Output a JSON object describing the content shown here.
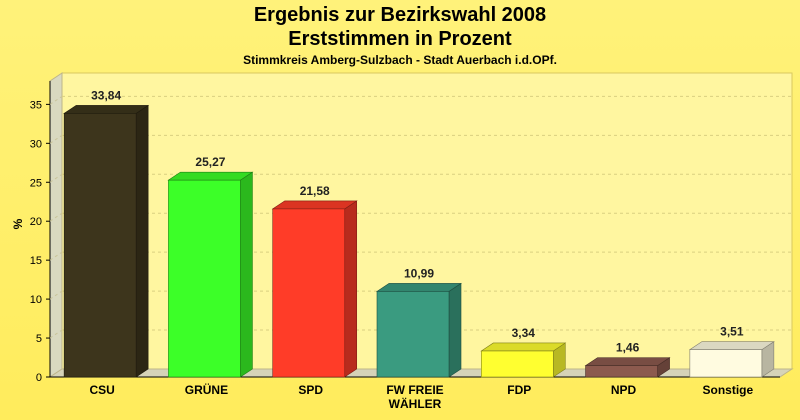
{
  "chart_data": {
    "type": "bar",
    "title": "Ergebnis zur Bezirkswahl 2008",
    "subtitle": "Erststimmen in Prozent",
    "subsubtitle": "Stimmkreis Amberg-Sulzbach - Stadt Auerbach i.d.OPf.",
    "xlabel": "",
    "ylabel": "%",
    "ylim": [
      0,
      38
    ],
    "yticks": [
      0,
      5,
      10,
      15,
      20,
      25,
      30,
      35
    ],
    "grid": true,
    "categories": [
      "CSU",
      "GRÜNE",
      "SPD",
      "FW FREIE WÄHLER",
      "FDP",
      "NPD",
      "Sonstige"
    ],
    "category_lines": [
      [
        "CSU"
      ],
      [
        "GRÜNE"
      ],
      [
        "SPD"
      ],
      [
        "FW FREIE",
        "WÄHLER"
      ],
      [
        "FDP"
      ],
      [
        "NPD"
      ],
      [
        "Sonstige"
      ]
    ],
    "values": [
      33.84,
      25.27,
      21.58,
      10.99,
      3.34,
      1.46,
      3.51
    ],
    "value_labels": [
      "33,84",
      "25,27",
      "21,58",
      "10,99",
      "3,34",
      "1,46",
      "3,51"
    ],
    "colors": [
      "#3d351c",
      "#3cff28",
      "#ff3c28",
      "#3a9b80",
      "#ffff30",
      "#8c5a4e",
      "#fffbe0"
    ]
  }
}
